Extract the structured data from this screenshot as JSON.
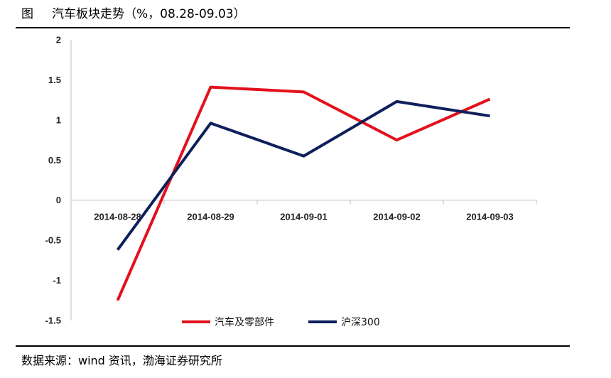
{
  "figure": {
    "label": "图",
    "title": "汽车板块走势（%，08.28-09.03）"
  },
  "source": "数据来源：wind 资讯，渤海证券研究所",
  "colors": {
    "series_auto": "#e3101c",
    "series_hs300": "#0f1f5c",
    "axis": "#bfbfbf"
  },
  "chart_data": {
    "type": "line",
    "title": "汽车板块走势（%，08.28-09.03）",
    "xlabel": "",
    "ylabel": "",
    "categories": [
      "2014-08-28",
      "2014-08-29",
      "2014-09-01",
      "2014-09-02",
      "2014-09-03"
    ],
    "series": [
      {
        "name": "汽车及零部件",
        "color": "#e3101c",
        "values": [
          -1.25,
          1.41,
          1.35,
          0.75,
          1.26
        ]
      },
      {
        "name": "沪深300",
        "color": "#0f1f5c",
        "values": [
          -0.62,
          0.96,
          0.55,
          1.23,
          1.05
        ]
      }
    ],
    "ylim": [
      -1.5,
      2
    ],
    "yticks": [
      2,
      1.5,
      1,
      0.5,
      0,
      -0.5,
      -1,
      -1.5
    ],
    "ytick_labels": [
      "2",
      "1.5",
      "1",
      "0.5",
      "0",
      "-0.5",
      "-1",
      "-1.5"
    ],
    "grid": false,
    "legend": "bottom-center"
  }
}
